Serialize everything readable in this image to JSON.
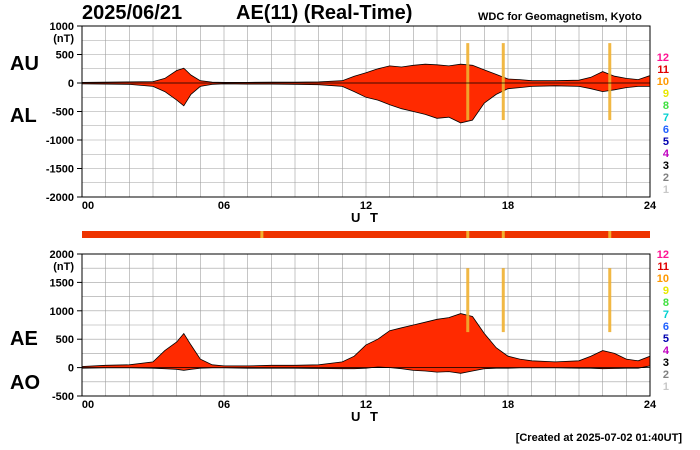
{
  "header": {
    "date": "2025/06/21",
    "title": "AE(11) (Real-Time)",
    "institution": "WDC for Geomagnetism, Kyoto"
  },
  "footer": {
    "created": "[Created at 2025-07-02 01:40UT]"
  },
  "colors": {
    "fill": "#ff2a00",
    "grid": "#a0a0a0",
    "count_bar": "#ee3300",
    "missing_marks": "#f0b030"
  },
  "station_legend": {
    "labels": [
      "12",
      "11",
      "10",
      "9",
      "8",
      "7",
      "6",
      "5",
      "4",
      "3",
      "2",
      "1"
    ],
    "colors": [
      "#ff1493",
      "#e00000",
      "#ff9900",
      "#e8e800",
      "#40e040",
      "#00d0d0",
      "#2060ff",
      "#0000b0",
      "#c000c0",
      "#000000",
      "#808080",
      "#c8c8c8"
    ]
  },
  "chart_data": [
    {
      "type": "area",
      "name": "AU/AL",
      "series_labels": [
        "AU",
        "AL"
      ],
      "ylabel": "(nT)",
      "xlabel": "U T",
      "xlim": [
        0,
        24
      ],
      "ylim": [
        -2000,
        1000
      ],
      "xticks": [
        "00",
        "06",
        "12",
        "18",
        "24"
      ],
      "yticks": [
        1000,
        500,
        0,
        -500,
        -1000,
        -1500,
        -2000
      ],
      "x": [
        0,
        1,
        2,
        3,
        3.5,
        4,
        4.3,
        4.6,
        5,
        5.5,
        6,
        7,
        8,
        9,
        10,
        11,
        11.5,
        12,
        12.5,
        13,
        13.5,
        14,
        14.5,
        15,
        15.5,
        16,
        16.5,
        17,
        17.5,
        18,
        18.5,
        19,
        20,
        21,
        21.5,
        22,
        22.5,
        23,
        23.5,
        24
      ],
      "upper": [
        10,
        15,
        20,
        25,
        80,
        220,
        260,
        140,
        40,
        15,
        10,
        10,
        15,
        15,
        20,
        40,
        120,
        180,
        250,
        300,
        280,
        310,
        330,
        320,
        300,
        330,
        310,
        230,
        150,
        70,
        60,
        40,
        40,
        50,
        100,
        200,
        120,
        80,
        60,
        130
      ],
      "lower": [
        -15,
        -20,
        -25,
        -60,
        -150,
        -300,
        -400,
        -200,
        -60,
        -25,
        -15,
        -20,
        -20,
        -25,
        -30,
        -60,
        -150,
        -250,
        -300,
        -380,
        -450,
        -500,
        -550,
        -620,
        -600,
        -700,
        -650,
        -350,
        -200,
        -100,
        -80,
        -60,
        -50,
        -60,
        -100,
        -150,
        -120,
        -80,
        -60,
        -60
      ],
      "gap_marks_hours": [
        16.3,
        17.8,
        22.3
      ]
    },
    {
      "type": "area",
      "name": "AE/AO",
      "series_labels": [
        "AE",
        "AO"
      ],
      "ylabel": "(nT)",
      "xlabel": "U T",
      "xlim": [
        0,
        24
      ],
      "ylim": [
        -500,
        2000
      ],
      "xticks": [
        "00",
        "06",
        "12",
        "18",
        "24"
      ],
      "yticks": [
        2000,
        1500,
        1000,
        500,
        0,
        -500
      ],
      "x": [
        0,
        1,
        2,
        3,
        3.5,
        4,
        4.3,
        4.6,
        5,
        5.5,
        6,
        7,
        8,
        9,
        10,
        11,
        11.5,
        12,
        12.5,
        13,
        13.5,
        14,
        14.5,
        15,
        15.5,
        16,
        16.5,
        17,
        17.5,
        18,
        18.5,
        19,
        20,
        21,
        21.5,
        22,
        22.5,
        23,
        23.5,
        24
      ],
      "upper": [
        20,
        40,
        50,
        100,
        300,
        450,
        600,
        400,
        150,
        50,
        30,
        30,
        40,
        40,
        50,
        100,
        200,
        400,
        500,
        650,
        700,
        750,
        800,
        850,
        880,
        950,
        900,
        600,
        350,
        200,
        150,
        120,
        100,
        120,
        200,
        300,
        250,
        150,
        120,
        200
      ],
      "lower": [
        -10,
        -5,
        -5,
        -10,
        -20,
        -30,
        -50,
        -30,
        -10,
        -5,
        -5,
        -10,
        -10,
        -10,
        -15,
        -20,
        -20,
        -10,
        10,
        0,
        -20,
        -50,
        -60,
        -80,
        -70,
        -100,
        -60,
        -20,
        -10,
        -10,
        -5,
        -5,
        -5,
        -10,
        -10,
        -20,
        -15,
        -10,
        -10,
        30
      ],
      "gap_marks_hours": [
        16.3,
        17.8,
        22.3
      ]
    }
  ]
}
